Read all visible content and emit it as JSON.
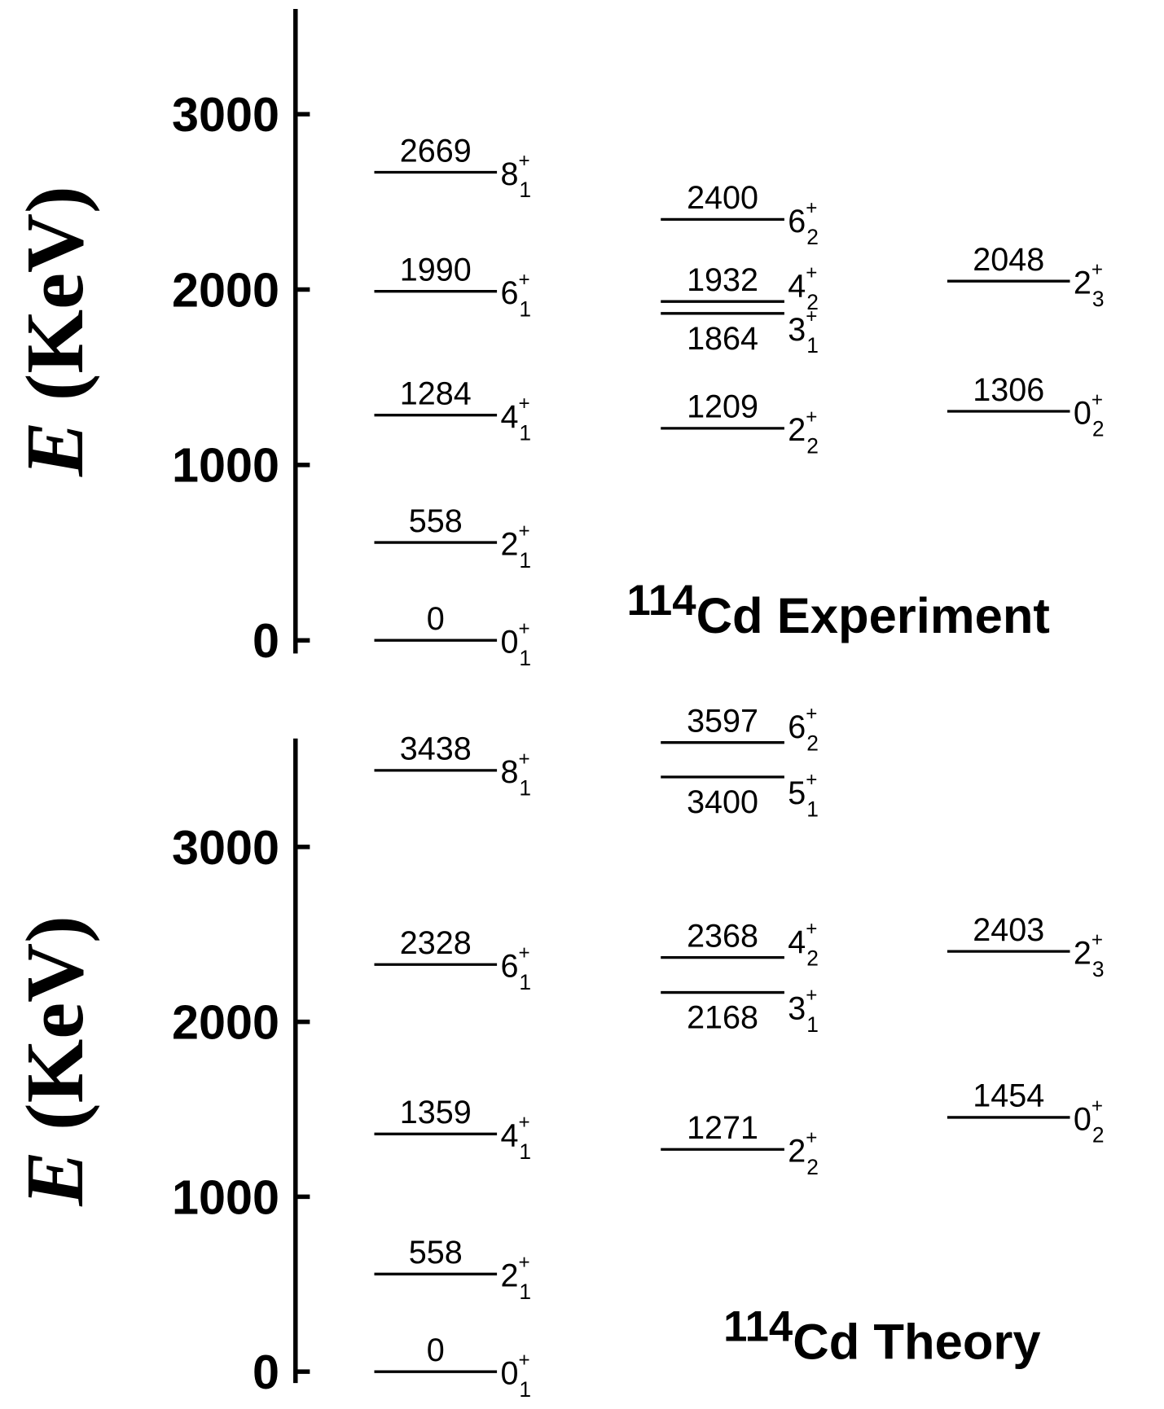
{
  "chart_data": [
    {
      "type": "level",
      "title_mass": "114",
      "title": "Cd Experiment",
      "ylabel_symbol": "E",
      "ylabel_unit": " (KeV)",
      "ylim": [
        -75,
        3600
      ],
      "yticks": [
        0,
        1000,
        2000,
        3000
      ],
      "series": [
        {
          "values": [
            0,
            558,
            1284,
            1990,
            2669
          ],
          "J": [
            "0",
            "2",
            "4",
            "6",
            "8"
          ],
          "parity": "+",
          "index": [
            "1",
            "1",
            "1",
            "1",
            "1"
          ]
        },
        {
          "values": [
            1209,
            1864,
            1932,
            2400
          ],
          "J": [
            "2",
            "3",
            "4",
            "6"
          ],
          "parity": "+",
          "index": [
            "2",
            "1",
            "2",
            "2"
          ]
        },
        {
          "values": [
            1306,
            2048
          ],
          "J": [
            "0",
            "2"
          ],
          "parity": "+",
          "index": [
            "2",
            "3"
          ]
        }
      ]
    },
    {
      "type": "level",
      "title_mass": "114",
      "title": "Cd Theory",
      "ylabel_symbol": "E",
      "ylabel_unit": " (KeV)",
      "ylim": [
        -65,
        3620
      ],
      "yticks": [
        0,
        1000,
        2000,
        3000
      ],
      "series": [
        {
          "values": [
            0,
            558,
            1359,
            2328,
            3438
          ],
          "J": [
            "0",
            "2",
            "4",
            "6",
            "8"
          ],
          "parity": "+",
          "index": [
            "1",
            "1",
            "1",
            "1",
            "1"
          ]
        },
        {
          "values": [
            1271,
            2168,
            2368,
            3400,
            3597
          ],
          "J": [
            "2",
            "3",
            "4",
            "5",
            "6"
          ],
          "parity": "+",
          "index": [
            "2",
            "1",
            "2",
            "1",
            "2"
          ]
        },
        {
          "values": [
            1454,
            2403
          ],
          "J": [
            "0",
            "2"
          ],
          "parity": "+",
          "index": [
            "2",
            "3"
          ]
        }
      ]
    }
  ]
}
